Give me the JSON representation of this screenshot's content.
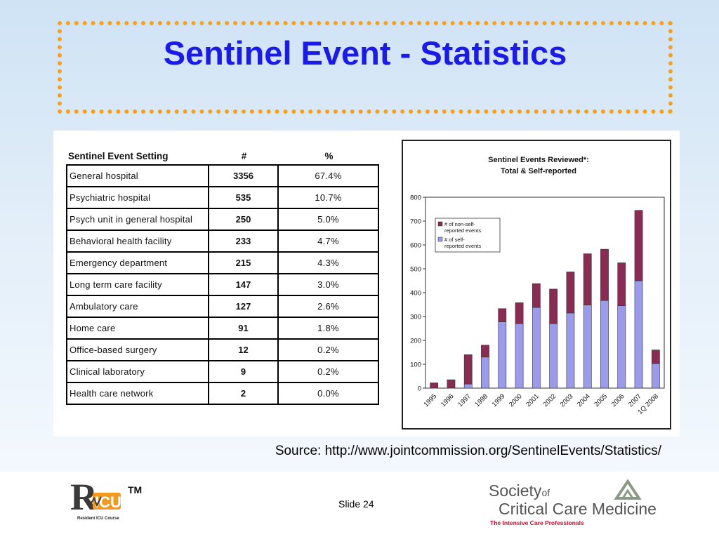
{
  "slide": {
    "title": "Sentinel Event - Statistics",
    "source": "Source: http://www.jointcommission.org/SentinelEvents/Statistics/",
    "slide_number": "Slide 24",
    "colors": {
      "title": "#1a1aee",
      "frame": "#f6a11b",
      "non_self": "#8b2a52",
      "self": "#9b9bee"
    }
  },
  "table": {
    "headers": [
      "Sentinel Event Setting",
      "#",
      "%"
    ],
    "rows": [
      {
        "setting": "General hospital",
        "count": "3356",
        "pct": "67.4%"
      },
      {
        "setting": "Psychiatric hospital",
        "count": "535",
        "pct": "10.7%"
      },
      {
        "setting": "Psych unit in general hospital",
        "count": "250",
        "pct": "5.0%"
      },
      {
        "setting": "Behavioral health facility",
        "count": "233",
        "pct": "4.7%"
      },
      {
        "setting": "Emergency department",
        "count": "215",
        "pct": "4.3%"
      },
      {
        "setting": "Long term care facility",
        "count": "147",
        "pct": "3.0%"
      },
      {
        "setting": "Ambulatory care",
        "count": "127",
        "pct": "2.6%"
      },
      {
        "setting": "Home care",
        "count": "91",
        "pct": "1.8%"
      },
      {
        "setting": "Office-based surgery",
        "count": "12",
        "pct": "0.2%"
      },
      {
        "setting": "Clinical laboratory",
        "count": "9",
        "pct": "0.2%"
      },
      {
        "setting": "Health care network",
        "count": "2",
        "pct": "0.0%"
      }
    ]
  },
  "chart_data": {
    "type": "bar",
    "stacked": true,
    "title_line1": "Sentinel Events Reviewed*:",
    "title_line2": "Total & Self-reported",
    "xlabel": "",
    "ylabel": "",
    "ylim": [
      0,
      800
    ],
    "yticks": [
      0,
      100,
      200,
      300,
      400,
      500,
      600,
      700,
      800
    ],
    "grid": false,
    "legend_position": "top-left",
    "categories": [
      "1995",
      "1996",
      "1997",
      "1998",
      "1999",
      "2000",
      "2001",
      "2002",
      "2003",
      "2004",
      "2005",
      "2006",
      "2007",
      "1Q 2008"
    ],
    "series": [
      {
        "name": "# of self- reported events",
        "color": "#9b9bee",
        "values": [
          0,
          0,
          17,
          130,
          278,
          270,
          338,
          270,
          315,
          348,
          367,
          345,
          450,
          103
        ]
      },
      {
        "name": "# of non-self- reported events",
        "color": "#8b2a52",
        "values": [
          22,
          35,
          123,
          50,
          55,
          88,
          100,
          145,
          172,
          215,
          215,
          180,
          295,
          57
        ]
      }
    ]
  },
  "logos": {
    "ricu": {
      "mark": "RICU",
      "tm": "TM",
      "subtitle": "Resident ICU Course"
    },
    "sccm": {
      "line1": "Society",
      "of": "of",
      "line2": "Critical Care Medicine",
      "tagline": "The Intensive Care Professionals"
    }
  }
}
